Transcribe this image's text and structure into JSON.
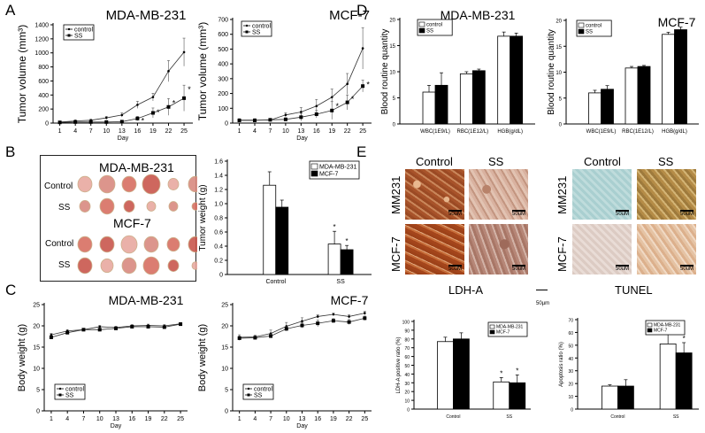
{
  "panel_labels": {
    "A": "A",
    "B": "B",
    "C": "C",
    "D": "D",
    "E": "E"
  },
  "colors": {
    "control": "#ffffff",
    "ss": "#000000",
    "axis": "#000000"
  },
  "photo_panel": {
    "title_1": "MDA-MB-231",
    "row_1": "Control",
    "row_2": "SS",
    "title_2": "MCF-7",
    "row_3": "Control",
    "row_4": "SS"
  },
  "histology": {
    "col_control": "Control",
    "col_ss": "SS",
    "col_control_2": "Control",
    "col_ss_2": "SS",
    "row_mm231": "MM231",
    "row_mcf7": "MCF-7",
    "row_mm231_2": "MM231",
    "row_mcf7_2": "MCF-7",
    "scale": "50uM",
    "ldh_title": "LDH-A",
    "tunel_title": "TUNEL",
    "scale_bar_label": "50µm"
  },
  "chart_data": [
    {
      "id": "A1",
      "type": "line",
      "title": "MDA-MB-231",
      "xlabel": "Day",
      "ylabel": "Tumor volume (mm³)",
      "x": [
        1,
        4,
        7,
        10,
        13,
        16,
        19,
        22,
        25
      ],
      "xlim": [
        -0.3,
        26.7
      ],
      "ylim": [
        0,
        1400
      ],
      "yticks": [
        0,
        200,
        400,
        600,
        800,
        1000,
        1200,
        1400
      ],
      "legend": "top-left",
      "series": [
        {
          "name": "control",
          "values": [
            15,
            30,
            40,
            75,
            115,
            260,
            370,
            740,
            1010
          ],
          "err": [
            10,
            15,
            15,
            20,
            30,
            50,
            55,
            150,
            200
          ]
        },
        {
          "name": "SS",
          "values": [
            10,
            15,
            15,
            15,
            20,
            65,
            145,
            230,
            355
          ],
          "err": [
            5,
            5,
            5,
            5,
            10,
            30,
            70,
            120,
            185
          ],
          "sig": [
            0,
            0,
            0,
            0,
            0,
            1,
            1,
            1,
            1
          ]
        }
      ]
    },
    {
      "id": "A2",
      "type": "line",
      "title": "MCF-7",
      "xlabel": "Day",
      "ylabel": "Tumor volume (mm³)",
      "x": [
        1,
        4,
        7,
        10,
        13,
        16,
        19,
        22,
        25
      ],
      "xlim": [
        -0.3,
        26.7
      ],
      "ylim": [
        0,
        700
      ],
      "yticks": [
        0,
        100,
        200,
        300,
        400,
        500,
        600,
        700
      ],
      "legend": "top-left",
      "series": [
        {
          "name": "control",
          "values": [
            20,
            20,
            20,
            55,
            75,
            115,
            175,
            265,
            505
          ],
          "err": [
            10,
            10,
            8,
            15,
            30,
            45,
            55,
            70,
            140
          ]
        },
        {
          "name": "SS",
          "values": [
            18,
            18,
            22,
            25,
            40,
            60,
            85,
            140,
            250
          ],
          "err": [
            8,
            8,
            6,
            10,
            25,
            25,
            60,
            50,
            40
          ],
          "sig": [
            0,
            0,
            0,
            0,
            0,
            0,
            1,
            1,
            1
          ]
        }
      ]
    },
    {
      "id": "C1",
      "type": "line",
      "title": "MDA-MB-231",
      "xlabel": "Day",
      "ylabel": "Body weight (g)",
      "x": [
        1,
        4,
        7,
        10,
        13,
        16,
        19,
        22,
        25
      ],
      "xlim": [
        -0.3,
        26.3
      ],
      "ylim": [
        0,
        25
      ],
      "yticks": [
        0,
        5,
        10,
        15,
        20,
        25
      ],
      "legend": "bottom-left",
      "series": [
        {
          "name": "control",
          "values": [
            17.9,
            18.8,
            19.1,
            19.8,
            19.6,
            20.0,
            20.1,
            20.0,
            20.5
          ],
          "err": [
            0.3,
            0.3,
            0.2,
            0.3,
            0.3,
            0.3,
            0.3,
            0.3,
            0.3
          ]
        },
        {
          "name": "SS",
          "values": [
            17.3,
            18.4,
            19.1,
            19.1,
            19.4,
            19.8,
            19.8,
            19.7,
            20.4
          ],
          "err": [
            0.3,
            0.3,
            0.2,
            0.3,
            0.3,
            0.3,
            0.3,
            0.3,
            0.3
          ]
        }
      ]
    },
    {
      "id": "C2",
      "type": "line",
      "title": "MCF-7",
      "xlabel": "Day",
      "ylabel": "Body weight (g)",
      "x": [
        1,
        4,
        7,
        10,
        13,
        16,
        19,
        22,
        25
      ],
      "xlim": [
        -0.3,
        26.3
      ],
      "ylim": [
        0,
        25
      ],
      "yticks": [
        0,
        5,
        10,
        15,
        20,
        25
      ],
      "legend": "bottom-left",
      "series": [
        {
          "name": "control",
          "values": [
            17.3,
            17.4,
            18.2,
            19.9,
            21.1,
            22.2,
            22.7,
            22.2,
            23.0
          ],
          "err": [
            0.6,
            0.4,
            0.8,
            0.9,
            0.8,
            0.4,
            0.3,
            0.4,
            0.4
          ]
        },
        {
          "name": "SS",
          "values": [
            17.1,
            17.2,
            17.6,
            19.3,
            20.1,
            20.6,
            21.2,
            20.9,
            21.8
          ],
          "err": [
            0.5,
            0.4,
            0.5,
            0.5,
            0.6,
            0.8,
            0.5,
            0.6,
            0.5
          ]
        }
      ]
    },
    {
      "id": "D1",
      "type": "bar",
      "title": "MDA-MB-231",
      "xlabel": "",
      "ylabel": "Blood routine quantity",
      "categories": [
        "WBC(1E9/L)",
        "RBC(1E12/L)",
        "HGB(g/dL)"
      ],
      "ylim": [
        0,
        20
      ],
      "yticks": [
        0,
        5,
        10,
        15,
        20
      ],
      "legend": "top-left",
      "series": [
        {
          "name": "control",
          "values": [
            6.1,
            9.6,
            16.8
          ],
          "err": [
            1.3,
            0.4,
            0.8
          ]
        },
        {
          "name": "SS",
          "values": [
            7.4,
            10.2,
            16.8
          ],
          "err": [
            2.4,
            0.3,
            0.6
          ]
        }
      ]
    },
    {
      "id": "D2",
      "type": "bar",
      "title": "MCF-7",
      "xlabel": "",
      "ylabel": "Blood routine quantity",
      "categories": [
        "WBC(1E9/L)",
        "RBC(1E12/L)",
        "HGB(g/dL)"
      ],
      "ylim": [
        0,
        20
      ],
      "yticks": [
        0,
        5,
        10,
        15,
        20
      ],
      "legend": "top-left",
      "series": [
        {
          "name": "control",
          "values": [
            6.0,
            10.8,
            17.3
          ],
          "err": [
            0.5,
            0.3,
            0.4
          ]
        },
        {
          "name": "SS",
          "values": [
            6.7,
            11.1,
            18.2
          ],
          "err": [
            0.7,
            0.2,
            0.5
          ]
        }
      ]
    },
    {
      "id": "B",
      "type": "bar",
      "title": "",
      "xlabel": "",
      "ylabel": "Tumor weight (g)",
      "categories": [
        "Control",
        "SS"
      ],
      "ylim": [
        0,
        1.6
      ],
      "yticks": [
        "0",
        "0.2",
        "0.4",
        "0.6",
        "0.8",
        "1.0",
        "1.2",
        "1.4",
        "1.6"
      ],
      "legend": "top-right",
      "series": [
        {
          "name": "MDA-MB-231",
          "values": [
            1.26,
            0.43
          ],
          "err": [
            0.19,
            0.18
          ],
          "sig": [
            0,
            1
          ]
        },
        {
          "name": "MCF-7",
          "values": [
            0.95,
            0.35
          ],
          "err": [
            0.1,
            0.06
          ],
          "sig": [
            0,
            1
          ]
        }
      ]
    },
    {
      "id": "E1",
      "type": "bar",
      "title": "",
      "xlabel": "",
      "ylabel": "LDH-A positive ratio (%)",
      "categories": [
        "Control",
        "SS"
      ],
      "ylim": [
        0,
        100
      ],
      "yticks": [
        0,
        10,
        20,
        30,
        40,
        50,
        60,
        70,
        80,
        90,
        100
      ],
      "legend": "top-right",
      "series": [
        {
          "name": "MDA-MB-231",
          "values": [
            77,
            31
          ],
          "err": [
            5,
            5
          ],
          "sig": [
            0,
            1
          ]
        },
        {
          "name": "MCF-7",
          "values": [
            80,
            30
          ],
          "err": [
            7,
            9
          ],
          "sig": [
            0,
            1
          ]
        }
      ]
    },
    {
      "id": "E2",
      "type": "bar",
      "title": "",
      "xlabel": "",
      "ylabel": "Apoptosis ratio (%)",
      "categories": [
        "Control",
        "SS"
      ],
      "ylim": [
        0,
        70
      ],
      "yticks": [
        0,
        10,
        20,
        30,
        40,
        50,
        60,
        70
      ],
      "legend": "top-right",
      "series": [
        {
          "name": "MDA-MB-231",
          "values": [
            18,
            51
          ],
          "err": [
            1,
            8
          ],
          "sig": [
            0,
            1
          ]
        },
        {
          "name": "MCF-7",
          "values": [
            18,
            44
          ],
          "err": [
            5,
            8
          ],
          "sig": [
            0,
            1
          ]
        }
      ]
    }
  ]
}
